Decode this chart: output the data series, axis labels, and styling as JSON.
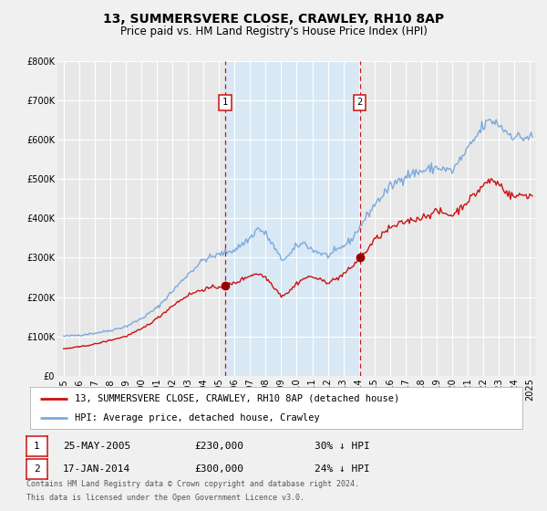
{
  "title": "13, SUMMERSVERE CLOSE, CRAWLEY, RH10 8AP",
  "subtitle": "Price paid vs. HM Land Registry's House Price Index (HPI)",
  "red_label": "13, SUMMERSVERE CLOSE, CRAWLEY, RH10 8AP (detached house)",
  "blue_label": "HPI: Average price, detached house, Crawley",
  "footnote1": "Contains HM Land Registry data © Crown copyright and database right 2024.",
  "footnote2": "This data is licensed under the Open Government Licence v3.0.",
  "event1_date": "25-MAY-2005",
  "event1_price": "£230,000",
  "event1_hpi": "30% ↓ HPI",
  "event2_date": "17-JAN-2014",
  "event2_price": "£300,000",
  "event2_hpi": "24% ↓ HPI",
  "event1_x": 2005.38,
  "event2_x": 2014.05,
  "event1_y": 230000,
  "event2_y": 300000,
  "ylim": [
    0,
    800000
  ],
  "yticks": [
    0,
    100000,
    200000,
    300000,
    400000,
    500000,
    600000,
    700000,
    800000
  ],
  "ytick_labels": [
    "£0",
    "£100K",
    "£200K",
    "£300K",
    "£400K",
    "£500K",
    "£600K",
    "£700K",
    "£800K"
  ],
  "xlim_start": 1994.6,
  "xlim_end": 2025.4,
  "background_color": "#f0f0f0",
  "plot_bg_color": "#e8e8e8",
  "shade_color": "#d8e8f4",
  "grid_color": "#ffffff",
  "red_color": "#cc1111",
  "blue_color": "#7aaadd",
  "event_marker_color": "#990000",
  "vline_color": "#cc1111",
  "title_fontsize": 10,
  "subtitle_fontsize": 8.5,
  "tick_fontsize": 7,
  "legend_fontsize": 7.5,
  "annotation_fontsize": 8
}
